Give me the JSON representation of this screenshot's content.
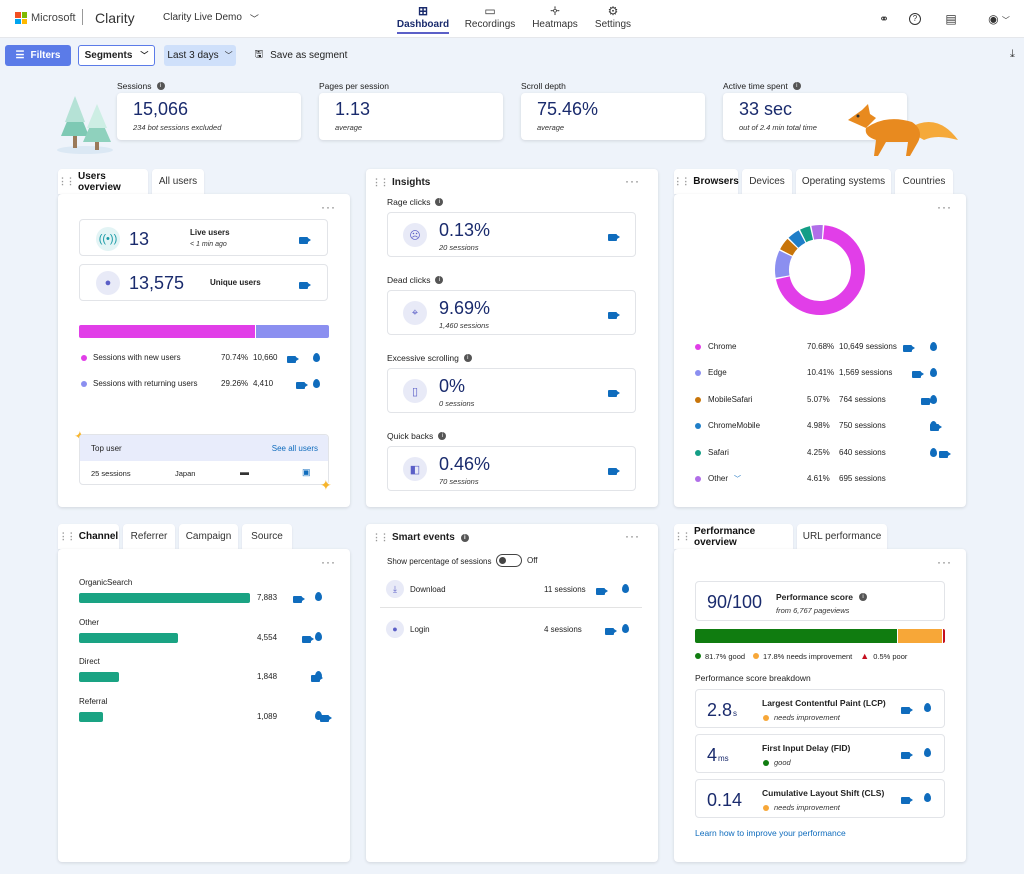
{
  "header": {
    "brand": "Microsoft",
    "product": "Clarity",
    "project": "Clarity Live Demo",
    "nav": [
      {
        "label": "Dashboard",
        "icon": "dashboard-icon"
      },
      {
        "label": "Recordings",
        "icon": "video-icon"
      },
      {
        "label": "Heatmaps",
        "icon": "flame-icon"
      },
      {
        "label": "Settings",
        "icon": "gear-icon"
      }
    ]
  },
  "toolbar": {
    "filters": "Filters",
    "segments": "Segments",
    "range": "Last 3 days",
    "save": "Save as segment"
  },
  "metrics": [
    {
      "label": "Sessions",
      "value": "15,066",
      "sub": "234 bot sessions excluded"
    },
    {
      "label": "Pages per session",
      "value": "1.13",
      "sub": "average"
    },
    {
      "label": "Scroll depth",
      "value": "75.46%",
      "sub": "average"
    },
    {
      "label": "Active time spent",
      "value": "33 sec",
      "sub": "out of 2.4 min total time"
    }
  ],
  "users": {
    "tabs": [
      "Users overview",
      "All users"
    ],
    "live": {
      "value": "13",
      "label": "Live users",
      "sub": "< 1 min ago"
    },
    "unique": {
      "value": "13,575",
      "label": "Unique users"
    },
    "split": [
      {
        "label": "Sessions with new users",
        "pct": "70.74%",
        "count": "10,660",
        "color": "#e13ee8",
        "frac": 0.7074
      },
      {
        "label": "Sessions with returning users",
        "pct": "29.26%",
        "count": "4,410",
        "color": "#8b8ff0",
        "frac": 0.2926
      }
    ],
    "top": {
      "title": "Top user",
      "link": "See all users",
      "sessions": "25 sessions",
      "country": "Japan"
    }
  },
  "insights": {
    "title": "Insights",
    "items": [
      {
        "label": "Rage clicks",
        "value": "0.13%",
        "sub": "20 sessions"
      },
      {
        "label": "Dead clicks",
        "value": "9.69%",
        "sub": "1,460 sessions"
      },
      {
        "label": "Excessive scrolling",
        "value": "0%",
        "sub": "0 sessions"
      },
      {
        "label": "Quick backs",
        "value": "0.46%",
        "sub": "70 sessions"
      }
    ]
  },
  "browsers": {
    "tabs": [
      "Browsers",
      "Devices",
      "Operating systems",
      "Countries"
    ],
    "items": [
      {
        "name": "Chrome",
        "pct": "70.68%",
        "sessions": "10,649 sessions",
        "color": "#e13ee8",
        "frac": 0.7068
      },
      {
        "name": "Edge",
        "pct": "10.41%",
        "sessions": "1,569 sessions",
        "color": "#8b8ff0",
        "frac": 0.1041
      },
      {
        "name": "MobileSafari",
        "pct": "5.07%",
        "sessions": "764 sessions",
        "color": "#c8750a",
        "frac": 0.0507
      },
      {
        "name": "ChromeMobile",
        "pct": "4.98%",
        "sessions": "750 sessions",
        "color": "#1f7ec8",
        "frac": 0.0498
      },
      {
        "name": "Safari",
        "pct": "4.25%",
        "sessions": "640 sessions",
        "color": "#139e86",
        "frac": 0.0425
      },
      {
        "name": "Other",
        "pct": "4.61%",
        "sessions": "695 sessions",
        "color": "#b06ee8",
        "frac": 0.0461
      }
    ]
  },
  "channel": {
    "tabs": [
      "Channel",
      "Referrer",
      "Campaign",
      "Source"
    ],
    "items": [
      {
        "name": "OrganicSearch",
        "value": "7,883",
        "frac": 1.0
      },
      {
        "name": "Other",
        "value": "4,554",
        "frac": 0.578
      },
      {
        "name": "Direct",
        "value": "1,848",
        "frac": 0.234
      },
      {
        "name": "Referral",
        "value": "1,089",
        "frac": 0.138
      }
    ]
  },
  "smart": {
    "title": "Smart events",
    "toggle_label": "Show percentage of sessions",
    "toggle_state": "Off",
    "items": [
      {
        "name": "Download",
        "sessions": "11 sessions"
      },
      {
        "name": "Login",
        "sessions": "4 sessions"
      }
    ]
  },
  "perf": {
    "tabs": [
      "Performance overview",
      "URL performance"
    ],
    "score": "90/100",
    "score_label": "Performance score",
    "score_sub": "from 6,767 pageviews",
    "legend": [
      {
        "label": "81.7% good",
        "color": "#107c10",
        "frac": 0.817
      },
      {
        "label": "17.8% needs improvement",
        "color": "#f7a738",
        "frac": 0.178
      },
      {
        "label": "0.5% poor",
        "color": "#c50f1f",
        "frac": 0.005
      }
    ],
    "breakdown_title": "Performance score breakdown",
    "items": [
      {
        "value": "2.8",
        "unit": "s",
        "name": "Largest Contentful Paint (LCP)",
        "status": "needs improvement",
        "color": "#f7a738"
      },
      {
        "value": "4",
        "unit": "ms",
        "name": "First Input Delay (FID)",
        "status": "good",
        "color": "#107c10"
      },
      {
        "value": "0.14",
        "unit": "",
        "name": "Cumulative Layout Shift (CLS)",
        "status": "needs improvement",
        "color": "#f7a738"
      }
    ],
    "link": "Learn how to improve your performance"
  }
}
